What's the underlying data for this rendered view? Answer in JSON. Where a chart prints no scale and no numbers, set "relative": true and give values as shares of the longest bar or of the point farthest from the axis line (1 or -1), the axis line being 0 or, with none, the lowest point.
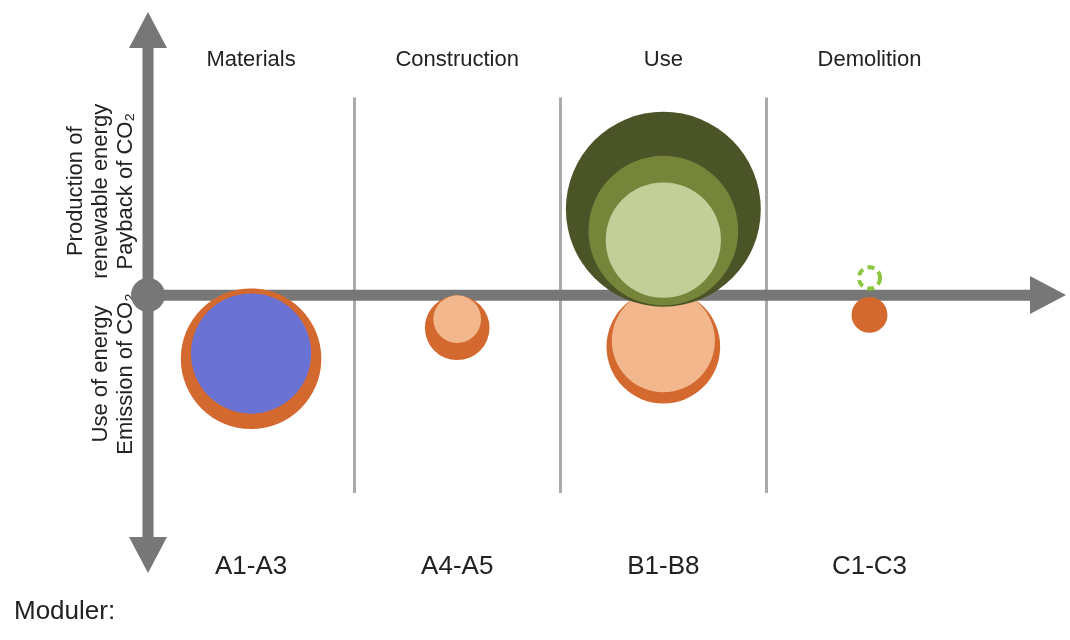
{
  "chart_data": {
    "type": "bubble",
    "relative": true,
    "xlabel": "Moduler:",
    "categories": [
      "A1-A3",
      "A4-A5",
      "B1-B8",
      "C1-C3"
    ],
    "grid": "x",
    "legend": false,
    "annotations": [
      "Materials",
      "Construction",
      "Use",
      "Demolition",
      "Production of\nrenewable energy\nPayback of CO₂",
      "Use of energy\nEmission of CO₂"
    ],
    "series": [
      {
        "color": "#d4692f",
        "values": [
          -0.74,
          -0.38,
          -0.6,
          -0.23
        ],
        "sizes": [
          0.52,
          0.11,
          0.34,
          0.034
        ]
      },
      {
        "color": "#f2b78c",
        "values": [
          null,
          -0.28,
          -0.53,
          null
        ],
        "sizes": [
          null,
          0.06,
          0.28,
          null
        ]
      },
      {
        "color": "#6a72d4",
        "values": [
          -0.68,
          null,
          null,
          null
        ],
        "sizes": [
          0.38,
          null,
          null,
          null
        ]
      },
      {
        "color": "#4b5427",
        "values": [
          null,
          null,
          1,
          null
        ],
        "sizes": [
          null,
          null,
          1,
          null
        ]
      },
      {
        "color": "#76853a",
        "values": [
          null,
          null,
          0.75,
          null
        ],
        "sizes": [
          null,
          null,
          0.59,
          null
        ]
      },
      {
        "color": "#c3cf98",
        "values": [
          null,
          null,
          0.64,
          null
        ],
        "sizes": [
          null,
          null,
          0.35,
          null
        ]
      },
      {
        "color": "#8cc63f",
        "line_style": "dashed",
        "values": [
          null,
          null,
          null,
          0.2
        ],
        "sizes": [
          null,
          null,
          null,
          0.012
        ]
      }
    ]
  }
}
